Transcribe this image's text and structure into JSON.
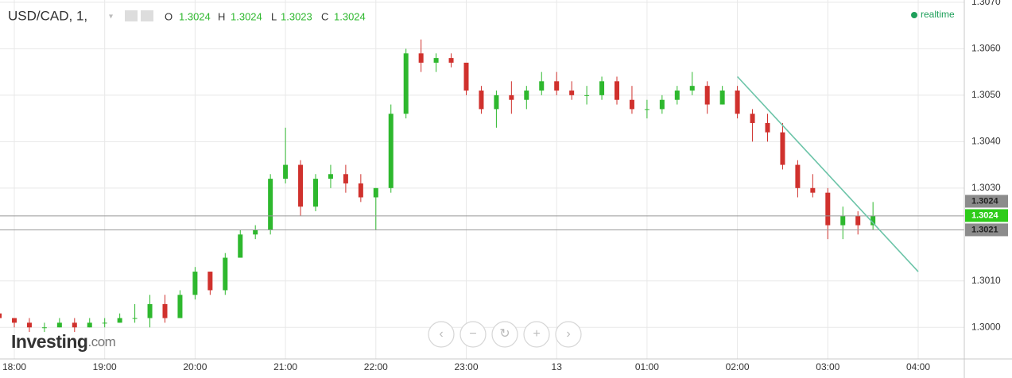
{
  "chart_data": {
    "type": "candlestick",
    "title": "USD/CAD, 1,",
    "ohlc_header": {
      "o_label": "O",
      "o": 1.3024,
      "h_label": "H",
      "h": 1.3024,
      "l_label": "L",
      "l": 1.3023,
      "c_label": "C",
      "c": 1.3024
    },
    "status": "realtime",
    "logo": {
      "name": "Investing",
      "suffix": ".com"
    },
    "categories": [
      null,
      "18:00",
      null,
      null,
      null,
      null,
      null,
      "19:00",
      null,
      null,
      null,
      null,
      null,
      "20:00",
      null,
      null,
      null,
      null,
      null,
      "21:00",
      null,
      null,
      null,
      null,
      null,
      "22:00",
      null,
      null,
      null,
      null,
      null,
      "23:00",
      null,
      null,
      null,
      null,
      null,
      "13",
      null,
      null,
      null,
      null,
      null,
      "01:00",
      null,
      null,
      null,
      null,
      null,
      "02:00",
      null,
      null,
      null,
      null,
      null,
      "03:00",
      null,
      null,
      null,
      null,
      null,
      "04:00",
      null,
      null,
      null
    ],
    "open": [
      1.3003,
      1.3002,
      1.3001,
      1.3,
      1.3,
      1.3001,
      1.3,
      1.3001,
      1.3001,
      1.3002,
      1.3002,
      1.3005,
      1.3002,
      1.3007,
      1.3012,
      1.3008,
      1.3015,
      1.302,
      1.3021,
      1.3032,
      1.3035,
      1.3026,
      1.3032,
      1.3033,
      1.3031,
      1.3028,
      1.303,
      1.3046,
      1.3059,
      1.3057,
      1.3058,
      1.3057,
      1.3051,
      1.3047,
      1.305,
      1.3049,
      1.3051,
      1.3053,
      1.3051,
      1.305,
      1.305,
      1.3053,
      1.3049,
      1.3047,
      1.3047,
      1.3049,
      1.3051,
      1.3052,
      1.3048,
      1.3051,
      1.3046,
      1.3044,
      1.3042,
      1.3035,
      1.303,
      1.3029,
      1.3022,
      1.3024,
      1.3022,
      null,
      null,
      null,
      null,
      null,
      null
    ],
    "high": [
      1.3003,
      1.3002,
      1.3002,
      1.3001,
      1.3002,
      1.3002,
      1.3002,
      1.3002,
      1.3003,
      1.3005,
      1.3007,
      1.3007,
      1.3008,
      1.3013,
      1.3012,
      1.3016,
      1.3021,
      1.3022,
      1.3033,
      1.3043,
      1.3036,
      1.3033,
      1.3035,
      1.3035,
      1.3033,
      1.303,
      1.3048,
      1.306,
      1.3062,
      1.3059,
      1.3059,
      1.3057,
      1.3052,
      1.3051,
      1.3053,
      1.3052,
      1.3055,
      1.3055,
      1.3053,
      1.3052,
      1.3054,
      1.3054,
      1.3052,
      1.3049,
      1.305,
      1.3052,
      1.3055,
      1.3053,
      1.3052,
      1.3052,
      1.3047,
      1.3046,
      1.3044,
      1.3036,
      1.3033,
      1.303,
      1.3026,
      1.3025,
      1.3027,
      null,
      null,
      null,
      null,
      null,
      null
    ],
    "low": [
      1.3001,
      1.3,
      1.2999,
      1.2999,
      1.3,
      1.2999,
      1.3,
      1.3,
      1.3001,
      1.3001,
      1.3,
      1.3001,
      1.3002,
      1.3006,
      1.3007,
      1.3007,
      1.3015,
      1.3019,
      1.302,
      1.3031,
      1.3024,
      1.3025,
      1.303,
      1.3029,
      1.3027,
      1.3021,
      1.3029,
      1.3045,
      1.3055,
      1.3055,
      1.3056,
      1.305,
      1.3046,
      1.3043,
      1.3046,
      1.3047,
      1.305,
      1.305,
      1.3049,
      1.3048,
      1.3049,
      1.3048,
      1.3046,
      1.3045,
      1.3046,
      1.3048,
      1.305,
      1.3046,
      1.3048,
      1.3045,
      1.304,
      1.304,
      1.3034,
      1.3028,
      1.3028,
      1.3019,
      1.3019,
      1.302,
      1.3021,
      null,
      null,
      null,
      null,
      null,
      null
    ],
    "close": [
      1.3002,
      1.3001,
      1.3,
      1.3,
      1.3001,
      1.3,
      1.3001,
      1.3001,
      1.3002,
      1.3002,
      1.3005,
      1.3002,
      1.3007,
      1.3012,
      1.3008,
      1.3015,
      1.302,
      1.3021,
      1.3032,
      1.3035,
      1.3026,
      1.3032,
      1.3033,
      1.3031,
      1.3028,
      1.303,
      1.3046,
      1.3059,
      1.3057,
      1.3058,
      1.3057,
      1.3051,
      1.3047,
      1.305,
      1.3049,
      1.3051,
      1.3053,
      1.3051,
      1.305,
      1.305,
      1.3053,
      1.3049,
      1.3047,
      1.3047,
      1.3049,
      1.3051,
      1.3052,
      1.3048,
      1.3051,
      1.3046,
      1.3044,
      1.3042,
      1.3035,
      1.303,
      1.3029,
      1.3022,
      1.3024,
      1.3022,
      1.3024,
      null,
      null,
      null,
      null,
      null,
      null
    ],
    "up_color": "#2eb82e",
    "down_color": "#d0312d",
    "ylim": [
      1.29932,
      1.30705
    ],
    "yticks": [
      {
        "value": 1.3,
        "label": "1.3000"
      },
      {
        "value": 1.301,
        "label": "1.3010"
      },
      {
        "value": 1.303,
        "label": "1.3030"
      },
      {
        "value": 1.304,
        "label": "1.3040"
      },
      {
        "value": 1.305,
        "label": "1.3050"
      },
      {
        "value": 1.306,
        "label": "1.3060"
      },
      {
        "value": 1.307,
        "label": "1.3070"
      }
    ],
    "grid": true,
    "price_lines": [
      1.3024,
      1.3021
    ],
    "price_labels": [
      {
        "value": 1.3024,
        "color": "#8c8c8c"
      },
      {
        "value": 1.3024,
        "color": "#2ecc1a"
      },
      {
        "value": 1.3021,
        "color": "#8c8c8c"
      }
    ],
    "trendline": {
      "x": [
        "02:00",
        "04:00"
      ],
      "y": [
        1.3054,
        1.3012
      ],
      "color": "#6cc4a8"
    }
  }
}
